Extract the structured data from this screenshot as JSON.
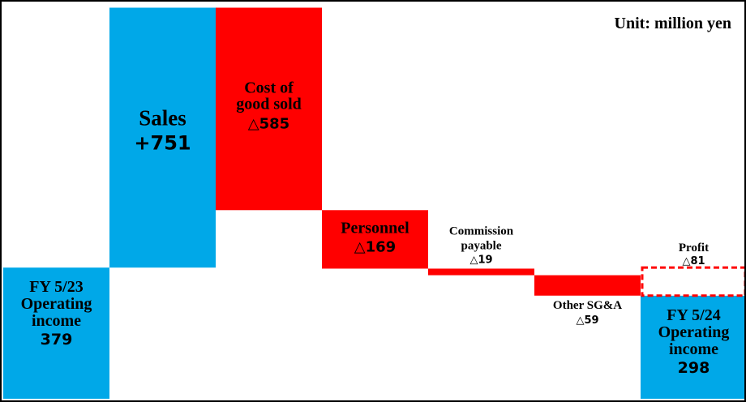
{
  "chart_data": {
    "type": "waterfall",
    "unit_label": "Unit: million yen",
    "colors": {
      "total": "#00a8e8",
      "increase": "#00a8e8",
      "decrease": "#ff0000",
      "profit_outline": "#ff0000"
    },
    "steps": [
      {
        "kind": "total",
        "label_lines": [
          "FY 5/23",
          "Operating",
          "income"
        ],
        "value_text": "379",
        "value": 379
      },
      {
        "kind": "increase",
        "label_lines": [
          "Sales"
        ],
        "value_text": "+751",
        "value": 751
      },
      {
        "kind": "decrease",
        "label_lines": [
          "Cost of",
          "good sold"
        ],
        "value_text": "△585",
        "value": -585
      },
      {
        "kind": "decrease",
        "label_lines": [
          "Personnel"
        ],
        "value_text": "△169",
        "value": -169
      },
      {
        "kind": "decrease",
        "label_lines": [
          "Commission",
          "payable"
        ],
        "value_text": "△19",
        "value": -19
      },
      {
        "kind": "decrease",
        "label_lines": [
          "Other SG&A"
        ],
        "value_text": "△59",
        "value": -59
      },
      {
        "kind": "total",
        "label_lines": [
          "FY 5/24",
          "Operating",
          "income"
        ],
        "value_text": "298",
        "value": 298
      }
    ],
    "profit_annotation": {
      "label": "Profit",
      "value_text": "△81",
      "value": -81
    }
  }
}
